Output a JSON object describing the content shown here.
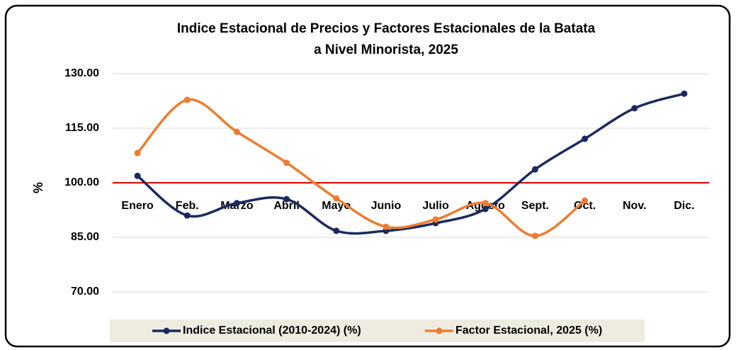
{
  "chart_data": {
    "type": "line",
    "title": [
      "Indice Estacional de Precios y Factores Estacionales de la Batata",
      "a Nivel Minorista, 2025"
    ],
    "y_label": "%",
    "categories": [
      "Enero",
      "Feb.",
      "Marzo",
      "Abril",
      "Mayo",
      "Junio",
      "Julio",
      "Agosto",
      "Sept.",
      "Oct.",
      "Nov.",
      "Dic."
    ],
    "series": [
      {
        "name": "Indice Estacional (2010-2024) (%)",
        "color": "#1b2a5e",
        "values": [
          101.9,
          91.0,
          94.4,
          95.5,
          86.8,
          86.8,
          88.9,
          92.8,
          103.7,
          112.1,
          120.5,
          124.5
        ]
      },
      {
        "name": "Factor Estacional, 2025 (%)",
        "color": "#ed7d31",
        "values": [
          108.2,
          122.8,
          114.0,
          105.5,
          95.7,
          87.9,
          89.9,
          94.4,
          85.4,
          95.1,
          null,
          null
        ]
      }
    ],
    "ylim": [
      70,
      130
    ],
    "yticks": [
      {
        "value": 70,
        "label": "70.00"
      },
      {
        "value": 85,
        "label": "85.00"
      },
      {
        "value": 100,
        "label": "100.00"
      },
      {
        "value": 115,
        "label": "115.00"
      },
      {
        "value": 130,
        "label": "130.00"
      }
    ],
    "grid": true,
    "reference_line": {
      "value": 100,
      "color": "#e00000"
    },
    "legend": "bottom",
    "smooth": true
  }
}
